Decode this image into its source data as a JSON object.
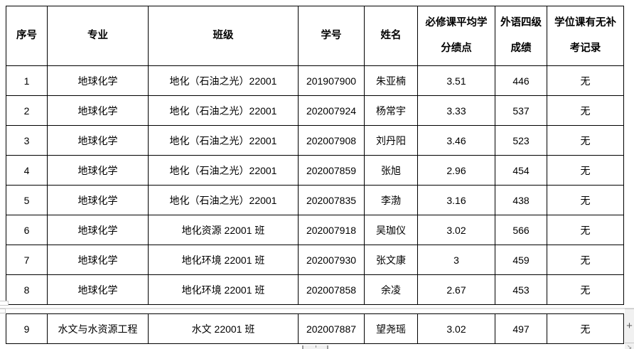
{
  "document": {
    "table": {
      "column_headers": [
        "序号",
        "专业",
        "班级",
        "学号",
        "姓名",
        "必修课平均学分绩点",
        "外语四级成绩",
        "学位课有无补考记录"
      ],
      "header_lines": [
        [
          "序号"
        ],
        [
          "专业"
        ],
        [
          "班级"
        ],
        [
          "学号"
        ],
        [
          "姓名"
        ],
        [
          "必修课平均学",
          "分绩点"
        ],
        [
          "外语四级",
          "成绩"
        ],
        [
          "学位课有无补",
          "考记录"
        ]
      ],
      "rows": [
        [
          "1",
          "地球化学",
          "地化（石油之光）22001",
          "201907900",
          "朱亚楠",
          "3.51",
          "446",
          "无"
        ],
        [
          "2",
          "地球化学",
          "地化（石油之光）22001",
          "202007924",
          "杨常宇",
          "3.33",
          "537",
          "无"
        ],
        [
          "3",
          "地球化学",
          "地化（石油之光）22001",
          "202007908",
          "刘丹阳",
          "3.46",
          "523",
          "无"
        ],
        [
          "4",
          "地球化学",
          "地化（石油之光）22001",
          "202007859",
          "张旭",
          "2.96",
          "454",
          "无"
        ],
        [
          "5",
          "地球化学",
          "地化（石油之光）22001",
          "202007835",
          "李渤",
          "3.16",
          "438",
          "无"
        ],
        [
          "6",
          "地球化学",
          "地化资源 22001 班",
          "202007918",
          "吴珈仪",
          "3.02",
          "566",
          "无"
        ],
        [
          "7",
          "地球化学",
          "地化环境 22001 班",
          "202007930",
          "张文康",
          "3",
          "459",
          "无"
        ],
        [
          "8",
          "地球化学",
          "地化环境 22001 班",
          "202007858",
          "余凌",
          "2.67",
          "453",
          "无"
        ],
        [
          "9",
          "水文与水资源工程",
          "水文 22001 班",
          "202007887",
          "望尧瑶",
          "3.02",
          "497",
          "无"
        ]
      ]
    }
  },
  "chrome": {
    "plus_button_glyph": "+",
    "resize_icon_glyph": "↘"
  },
  "colors": {
    "table_border": "#000000",
    "text": "#000000",
    "page_background": "#ffffff",
    "page_break_line": "#e2e2e2",
    "scrollbar_background": "#f1f1f1",
    "scrollbar_glyph": "#595959"
  }
}
